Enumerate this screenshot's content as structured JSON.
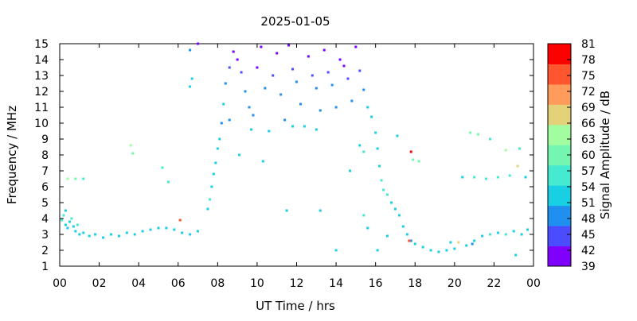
{
  "chart_data": {
    "type": "heatmap",
    "title": "2025-01-05",
    "xlabel": "UT Time / hrs",
    "ylabel": "Frequency / MHz",
    "colorbar_label": "Signal Amplitude / dB",
    "xlim": [
      0,
      24
    ],
    "ylim": [
      1,
      15
    ],
    "x_ticks": [
      "00",
      "02",
      "04",
      "06",
      "08",
      "10",
      "12",
      "14",
      "16",
      "18",
      "20",
      "22",
      "00"
    ],
    "y_ticks": [
      "1",
      "2",
      "3",
      "4",
      "5",
      "6",
      "7",
      "8",
      "9",
      "10",
      "11",
      "12",
      "13",
      "14",
      "15"
    ],
    "colorbar_ticks": [
      "39",
      "42",
      "45",
      "48",
      "51",
      "54",
      "57",
      "60",
      "63",
      "66",
      "69",
      "72",
      "75",
      "78",
      "81"
    ],
    "colorbar_range": [
      39,
      81
    ],
    "colors": [
      "#7f00ff",
      "#4c4cff",
      "#1f8ff0",
      "#19cfe3",
      "#45ead0",
      "#75f6b0",
      "#a2fca0",
      "#e4d27a",
      "#ff9c5c",
      "#ff5630",
      "#ff0000"
    ],
    "grid": false,
    "points": [
      [
        0.1,
        3.9,
        55
      ],
      [
        0.2,
        4.2,
        55
      ],
      [
        0.3,
        3.6,
        54
      ],
      [
        0.3,
        4.5,
        54
      ],
      [
        0.4,
        3.4,
        52
      ],
      [
        0.5,
        3.8,
        54
      ],
      [
        0.6,
        4.0,
        55
      ],
      [
        0.7,
        3.5,
        52
      ],
      [
        0.8,
        3.2,
        53
      ],
      [
        0.9,
        3.6,
        55
      ],
      [
        1.0,
        3.0,
        54
      ],
      [
        1.2,
        3.1,
        53
      ],
      [
        1.5,
        2.9,
        52
      ],
      [
        1.8,
        3.0,
        53
      ],
      [
        2.2,
        2.8,
        52
      ],
      [
        2.6,
        3.0,
        53
      ],
      [
        3.0,
        2.9,
        52
      ],
      [
        3.4,
        3.1,
        53
      ],
      [
        3.8,
        3.0,
        52
      ],
      [
        4.2,
        3.2,
        53
      ],
      [
        4.6,
        3.3,
        52
      ],
      [
        5.0,
        3.4,
        53
      ],
      [
        5.4,
        3.4,
        52
      ],
      [
        5.8,
        3.3,
        53
      ],
      [
        6.2,
        3.1,
        52
      ],
      [
        6.6,
        3.0,
        53
      ],
      [
        7.0,
        3.2,
        52
      ],
      [
        0.4,
        6.5,
        62
      ],
      [
        0.8,
        6.5,
        60
      ],
      [
        1.2,
        6.5,
        58
      ],
      [
        3.6,
        8.6,
        62
      ],
      [
        3.7,
        8.1,
        60
      ],
      [
        5.2,
        7.2,
        58
      ],
      [
        5.5,
        6.3,
        56
      ],
      [
        6.1,
        3.9,
        75
      ],
      [
        6.6,
        12.3,
        52
      ],
      [
        6.7,
        12.8,
        54
      ],
      [
        6.6,
        14.6,
        48
      ],
      [
        7.0,
        15.0,
        42
      ],
      [
        7.5,
        4.6,
        54
      ],
      [
        7.6,
        5.2,
        55
      ],
      [
        7.7,
        6.0,
        53
      ],
      [
        7.8,
        6.8,
        54
      ],
      [
        7.9,
        7.5,
        52
      ],
      [
        8.0,
        8.4,
        54
      ],
      [
        8.1,
        9.0,
        52
      ],
      [
        8.2,
        10.0,
        50
      ],
      [
        8.3,
        11.2,
        51
      ],
      [
        8.4,
        12.5,
        50
      ],
      [
        8.6,
        13.5,
        45
      ],
      [
        8.8,
        14.5,
        42
      ],
      [
        9.0,
        14.0,
        42
      ],
      [
        9.2,
        13.2,
        44
      ],
      [
        9.4,
        12.0,
        48
      ],
      [
        9.6,
        11.0,
        49
      ],
      [
        9.8,
        10.5,
        50
      ],
      [
        10.0,
        13.5,
        42
      ],
      [
        10.2,
        14.8,
        41
      ],
      [
        10.4,
        12.2,
        50
      ],
      [
        10.6,
        9.5,
        52
      ],
      [
        10.8,
        13.0,
        44
      ],
      [
        11.0,
        14.4,
        41
      ],
      [
        11.2,
        11.8,
        49
      ],
      [
        11.4,
        10.2,
        50
      ],
      [
        11.6,
        14.9,
        41
      ],
      [
        11.8,
        13.4,
        43
      ],
      [
        12.0,
        12.6,
        47
      ],
      [
        12.2,
        11.2,
        50
      ],
      [
        12.4,
        9.8,
        51
      ],
      [
        12.6,
        14.2,
        42
      ],
      [
        12.8,
        13.0,
        44
      ],
      [
        13.0,
        12.2,
        49
      ],
      [
        13.2,
        10.8,
        50
      ],
      [
        13.4,
        14.6,
        41
      ],
      [
        13.6,
        13.2,
        43
      ],
      [
        13.8,
        12.4,
        48
      ],
      [
        14.0,
        11.0,
        50
      ],
      [
        14.2,
        14.0,
        42
      ],
      [
        14.4,
        13.6,
        42
      ],
      [
        14.6,
        12.8,
        46
      ],
      [
        14.8,
        11.4,
        50
      ],
      [
        15.0,
        14.8,
        41
      ],
      [
        15.2,
        13.3,
        44
      ],
      [
        15.4,
        12.1,
        50
      ],
      [
        15.6,
        11.0,
        51
      ],
      [
        15.8,
        10.4,
        51
      ],
      [
        16.0,
        9.4,
        52
      ],
      [
        16.1,
        8.4,
        53
      ],
      [
        16.2,
        7.3,
        54
      ],
      [
        16.3,
        6.4,
        55
      ],
      [
        16.4,
        5.8,
        56
      ],
      [
        16.6,
        5.5,
        55
      ],
      [
        16.8,
        5.0,
        54
      ],
      [
        17.0,
        4.6,
        53
      ],
      [
        17.2,
        4.2,
        52
      ],
      [
        17.4,
        3.5,
        53
      ],
      [
        17.6,
        3.0,
        52
      ],
      [
        17.8,
        2.6,
        50
      ],
      [
        18.0,
        2.4,
        51
      ],
      [
        18.4,
        2.2,
        52
      ],
      [
        18.8,
        2.0,
        51
      ],
      [
        19.2,
        1.9,
        52
      ],
      [
        19.6,
        2.0,
        52
      ],
      [
        20.0,
        2.1,
        51
      ],
      [
        20.2,
        2.5,
        66
      ],
      [
        20.6,
        2.3,
        52
      ],
      [
        21.0,
        2.6,
        53
      ],
      [
        21.4,
        2.9,
        54
      ],
      [
        21.8,
        3.0,
        55
      ],
      [
        22.2,
        3.1,
        54
      ],
      [
        22.6,
        3.0,
        55
      ],
      [
        23.0,
        3.2,
        54
      ],
      [
        23.4,
        3.0,
        54
      ],
      [
        23.7,
        3.3,
        52
      ],
      [
        20.4,
        6.6,
        54
      ],
      [
        21.0,
        6.6,
        56
      ],
      [
        21.6,
        6.5,
        55
      ],
      [
        22.2,
        6.6,
        56
      ],
      [
        22.8,
        6.7,
        55
      ],
      [
        23.2,
        7.3,
        66
      ],
      [
        23.6,
        6.6,
        54
      ],
      [
        23.3,
        8.4,
        58
      ],
      [
        17.8,
        8.2,
        80
      ],
      [
        17.9,
        7.7,
        60
      ],
      [
        17.7,
        2.6,
        75
      ],
      [
        16.1,
        2.0,
        53
      ],
      [
        15.6,
        3.4,
        52
      ],
      [
        15.4,
        8.2,
        56
      ],
      [
        14.7,
        7.0,
        54
      ],
      [
        14.0,
        2.0,
        52
      ],
      [
        13.2,
        4.5,
        53
      ],
      [
        11.5,
        4.5,
        52
      ],
      [
        10.3,
        7.6,
        51
      ],
      [
        9.1,
        8.0,
        52
      ],
      [
        19.8,
        2.5,
        51
      ],
      [
        20.9,
        2.4,
        50
      ],
      [
        23.1,
        1.7,
        52
      ],
      [
        20.8,
        9.4,
        60
      ],
      [
        21.8,
        9.0,
        57
      ],
      [
        22.6,
        8.3,
        62
      ],
      [
        21.2,
        9.3,
        60
      ],
      [
        15.4,
        4.2,
        56
      ],
      [
        15.2,
        8.6,
        54
      ],
      [
        17.1,
        9.2,
        52
      ],
      [
        18.2,
        7.6,
        60
      ],
      [
        13.0,
        9.6,
        52
      ],
      [
        11.8,
        9.8,
        52
      ],
      [
        9.7,
        9.6,
        52
      ],
      [
        8.6,
        10.2,
        50
      ],
      [
        16.6,
        2.9,
        53
      ]
    ]
  }
}
